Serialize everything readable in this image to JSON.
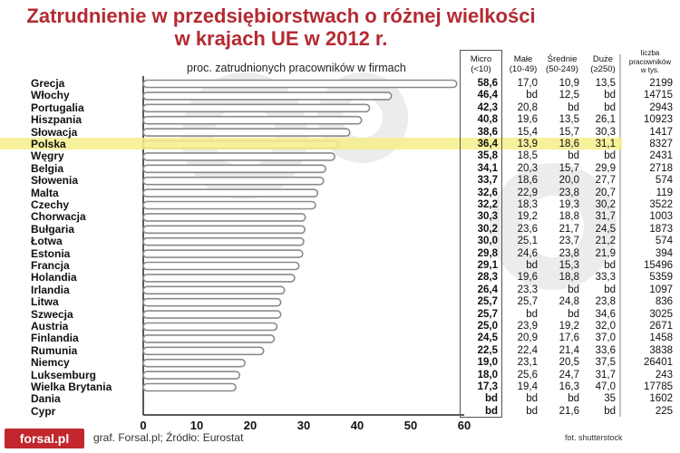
{
  "title_line1": "Zatrudnienie w przedsiębiorstwach o różnej wielkości",
  "title_line2": "w krajach UE w 2012 r.",
  "subtitle": "proc. zatrudnionych pracowników w firmach",
  "columns": {
    "micro": [
      "Micro",
      "(<10)"
    ],
    "male": [
      "Małe",
      "(10-49)"
    ],
    "srednie": [
      "Średnie",
      "(50-249)"
    ],
    "duze": [
      "Duże",
      "(≥250)"
    ],
    "liczba": [
      "liczba",
      "pracowników",
      "w tys."
    ]
  },
  "source": "graf. Forsal.pl; Źródło: Eurostat",
  "credit": "fot. shutterstock",
  "logo": "forsal.pl",
  "colors": {
    "title": "#b42a32",
    "highlight": "#f6ef8a",
    "bar_fill": "#ffffff",
    "bar_stroke": "#8a8a8a"
  },
  "highlight_country": "Polska",
  "chart_data": {
    "type": "bar",
    "orientation": "horizontal",
    "xlim": [
      0,
      60
    ],
    "xticks": [
      "0",
      "10",
      "20",
      "30",
      "40",
      "50",
      "60"
    ],
    "categories": [
      "Grecja",
      "Włochy",
      "Portugalia",
      "Hiszpania",
      "Słowacja",
      "Polska",
      "Węgry",
      "Belgia",
      "Słowenia",
      "Malta",
      "Czechy",
      "Chorwacja",
      "Bułgaria",
      "Łotwa",
      "Estonia",
      "Francja",
      "Holandia",
      "Irlandia",
      "Litwa",
      "Szwecja",
      "Austria",
      "Finlandia",
      "Rumunia",
      "Niemcy",
      "Luksemburg",
      "Wielka Brytania",
      "Dania",
      "Cypr"
    ],
    "values": [
      58.6,
      46.4,
      42.3,
      40.8,
      38.6,
      36.4,
      35.8,
      34.1,
      33.7,
      32.6,
      32.2,
      30.3,
      30.2,
      30.0,
      29.8,
      29.1,
      28.3,
      26.4,
      25.7,
      25.7,
      25.0,
      24.5,
      22.5,
      19.0,
      18.0,
      17.3,
      null,
      null
    ],
    "table": [
      [
        "58,6",
        "17,0",
        "10,9",
        "13,5",
        "2199"
      ],
      [
        "46,4",
        "bd",
        "12,5",
        "bd",
        "14715"
      ],
      [
        "42,3",
        "20,8",
        "bd",
        "bd",
        "2943"
      ],
      [
        "40,8",
        "19,6",
        "13,5",
        "26,1",
        "10923"
      ],
      [
        "38,6",
        "15,4",
        "15,7",
        "30,3",
        "1417"
      ],
      [
        "36,4",
        "13,9",
        "18,6",
        "31,1",
        "8327"
      ],
      [
        "35,8",
        "18,5",
        "bd",
        "bd",
        "2431"
      ],
      [
        "34,1",
        "20,3",
        "15,7",
        "29,9",
        "2718"
      ],
      [
        "33,7",
        "18,6",
        "20,0",
        "27,7",
        "574"
      ],
      [
        "32,6",
        "22,9",
        "23,8",
        "20,7",
        "119"
      ],
      [
        "32,2",
        "18,3",
        "19,3",
        "30,2",
        "3522"
      ],
      [
        "30,3",
        "19,2",
        "18,8",
        "31,7",
        "1003"
      ],
      [
        "30,2",
        "23,6",
        "21,7",
        "24,5",
        "1873"
      ],
      [
        "30,0",
        "25,1",
        "23,7",
        "21,2",
        "574"
      ],
      [
        "29,8",
        "24,6",
        "23,8",
        "21,9",
        "394"
      ],
      [
        "29,1",
        "bd",
        "15,3",
        "bd",
        "15496"
      ],
      [
        "28,3",
        "19,6",
        "18,8",
        "33,3",
        "5359"
      ],
      [
        "26,4",
        "23,3",
        "bd",
        "bd",
        "1097"
      ],
      [
        "25,7",
        "25,7",
        "24,8",
        "23,8",
        "836"
      ],
      [
        "25,7",
        "bd",
        "bd",
        "34,6",
        "3025"
      ],
      [
        "25,0",
        "23,9",
        "19,2",
        "32,0",
        "2671"
      ],
      [
        "24,5",
        "20,9",
        "17,6",
        "37,0",
        "1458"
      ],
      [
        "22,5",
        "22,4",
        "21,4",
        "33,6",
        "3838"
      ],
      [
        "19,0",
        "23,1",
        "20,5",
        "37,5",
        "26401"
      ],
      [
        "18,0",
        "25,6",
        "24,7",
        "31,7",
        "243"
      ],
      [
        "17,3",
        "19,4",
        "16,3",
        "47,0",
        "17785"
      ],
      [
        "bd",
        "bd",
        "bd",
        "35",
        "1602"
      ],
      [
        "bd",
        "bd",
        "21,6",
        "bd",
        "225"
      ]
    ]
  }
}
